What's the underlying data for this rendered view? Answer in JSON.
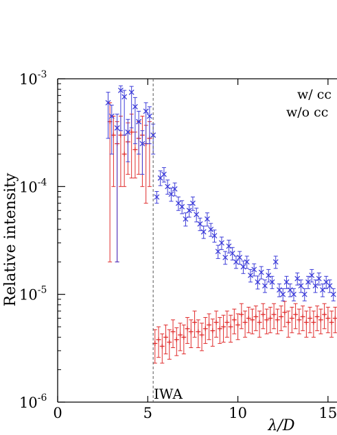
{
  "chart_data": {
    "type": "scatter",
    "xlabel": "λ/D",
    "ylabel": "Relative intensity",
    "xlim": [
      0,
      15.5
    ],
    "ylim": [
      1e-06,
      0.001
    ],
    "y_scale": "log",
    "x_ticks": [
      {
        "value": 0,
        "label": "0"
      },
      {
        "value": 5,
        "label": "5"
      },
      {
        "value": 10,
        "label": "10"
      },
      {
        "value": 15,
        "label": "15"
      }
    ],
    "y_ticks": [
      {
        "value": 1e-06,
        "base": "10",
        "exp": "-6"
      },
      {
        "value": 1e-05,
        "base": "10",
        "exp": "-5"
      },
      {
        "value": 0.0001,
        "base": "10",
        "exp": "-4"
      },
      {
        "value": 0.001,
        "base": "10",
        "exp": "-3"
      }
    ],
    "legend": {
      "position": "top-right",
      "entries": [
        "w/ cc",
        "w/o cc"
      ]
    },
    "annotations": [
      {
        "text": "IWA",
        "x": 5.3
      }
    ],
    "colors": {
      "series_blue": "#3a3ad8",
      "series_red": "#e02a2a",
      "axis": "#000000"
    },
    "series": [
      {
        "marker": "x",
        "color": "#3a3ad8",
        "x": [
          2.8,
          3.0,
          3.3,
          3.5,
          3.7,
          3.9,
          4.1,
          4.3,
          4.5,
          4.7,
          4.9,
          5.1,
          5.3,
          5.5,
          5.7,
          5.9,
          6.1,
          6.3,
          6.5,
          6.7,
          6.9,
          7.1,
          7.3,
          7.5,
          7.7,
          7.9,
          8.1,
          8.3,
          8.5,
          8.7,
          8.9,
          9.1,
          9.3,
          9.5,
          9.7,
          9.9,
          10.1,
          10.3,
          10.5,
          10.7,
          10.9,
          11.1,
          11.3,
          11.5,
          11.7,
          11.9,
          12.1,
          12.3,
          12.5,
          12.7,
          12.9,
          13.1,
          13.3,
          13.5,
          13.7,
          13.9,
          14.1,
          14.3,
          14.5,
          14.7,
          14.9,
          15.1,
          15.3
        ],
        "y": [
          0.0006,
          0.00045,
          0.00035,
          0.00078,
          0.00068,
          0.00032,
          0.00075,
          0.00055,
          0.0004,
          0.00025,
          0.0005,
          0.00045,
          0.0003,
          8e-05,
          0.00012,
          0.00013,
          0.0001,
          8.5e-05,
          9.5e-05,
          7e-05,
          6.5e-05,
          5e-05,
          6e-05,
          7e-05,
          5.5e-05,
          4.5e-05,
          3.8e-05,
          5e-05,
          4e-05,
          3.5e-05,
          2.5e-05,
          3e-05,
          2.2e-05,
          2.8e-05,
          2.4e-05,
          2e-05,
          2.2e-05,
          1.8e-05,
          2e-05,
          1.5e-05,
          1.7e-05,
          1.3e-05,
          1.6e-05,
          1.2e-05,
          1.5e-05,
          1.3e-05,
          2e-05,
          1.1e-05,
          1e-05,
          1.3e-05,
          1.1e-05,
          1e-05,
          1.4e-05,
          1.2e-05,
          1e-05,
          1.3e-05,
          1.5e-05,
          1.2e-05,
          1.4e-05,
          1.1e-05,
          1.3e-05,
          1.2e-05,
          1e-05
        ],
        "err_lo": [
          0.00032,
          0.00025,
          0.00033,
          0.00045,
          0.00038,
          0.00015,
          0.0004,
          0.0003,
          0.0002,
          0.00012,
          0.00025,
          0.0002,
          0.0001,
          1e-05,
          1.8e-05,
          2e-05,
          1.5e-05,
          1.2e-05,
          1.3e-05,
          1e-05,
          9e-06,
          7e-06,
          8e-06,
          1e-05,
          8e-06,
          6e-06,
          5e-06,
          7e-06,
          5.5e-06,
          4.5e-06,
          3.5e-06,
          4e-06,
          3e-06,
          3.8e-06,
          3.2e-06,
          2.6e-06,
          3e-06,
          2.4e-06,
          2.6e-06,
          2e-06,
          2.2e-06,
          1.8e-06,
          2.1e-06,
          1.6e-06,
          2e-06,
          1.7e-06,
          2.6e-06,
          1.5e-06,
          1.3e-06,
          1.7e-06,
          1.5e-06,
          1.3e-06,
          1.8e-06,
          1.6e-06,
          1.3e-06,
          1.7e-06,
          2e-06,
          1.6e-06,
          1.8e-06,
          1.5e-06,
          1.7e-06,
          1.6e-06,
          1.3e-06
        ],
        "err_hi": [
          0.00015,
          0.00012,
          0.00012,
          8e-05,
          0.0001,
          0.0001,
          0.0001,
          0.00012,
          0.0001,
          8e-05,
          0.0001,
          0.0001,
          8e-05,
          1e-05,
          2e-05,
          2e-05,
          1.5e-05,
          1.2e-05,
          1.3e-05,
          1e-05,
          9e-06,
          7e-06,
          8e-06,
          1e-05,
          8e-06,
          6e-06,
          5e-06,
          7e-06,
          5.5e-06,
          4.5e-06,
          3.5e-06,
          4e-06,
          3e-06,
          3.8e-06,
          3.2e-06,
          2.6e-06,
          3e-06,
          2.4e-06,
          2.6e-06,
          2e-06,
          2.2e-06,
          1.8e-06,
          2.1e-06,
          1.6e-06,
          2e-06,
          1.7e-06,
          2.6e-06,
          1.5e-06,
          1.3e-06,
          1.7e-06,
          1.5e-06,
          1.3e-06,
          1.8e-06,
          1.6e-06,
          1.3e-06,
          1.7e-06,
          2e-06,
          1.6e-06,
          1.8e-06,
          1.5e-06,
          1.7e-06,
          1.6e-06,
          1.3e-06
        ]
      },
      {
        "marker": "+",
        "color": "#e02a2a",
        "x": [
          2.9,
          3.1,
          3.3,
          3.5,
          3.7,
          3.9,
          4.1,
          4.3,
          4.5,
          4.7,
          4.9,
          5.1,
          5.4,
          5.6,
          5.8,
          6.0,
          6.2,
          6.4,
          6.6,
          6.8,
          7.0,
          7.2,
          7.4,
          7.6,
          7.8,
          8.0,
          8.2,
          8.4,
          8.6,
          8.8,
          9.0,
          9.2,
          9.4,
          9.6,
          9.8,
          10.0,
          10.2,
          10.4,
          10.6,
          10.8,
          11.0,
          11.2,
          11.4,
          11.6,
          11.8,
          12.0,
          12.2,
          12.4,
          12.6,
          12.8,
          13.0,
          13.2,
          13.4,
          13.6,
          13.8,
          14.0,
          14.2,
          14.4,
          14.6,
          14.8,
          15.0,
          15.2,
          15.4
        ],
        "y": [
          0.0004,
          0.0003,
          0.00025,
          0.0003,
          0.0002,
          0.00026,
          0.00032,
          0.00022,
          0.00028,
          0.0003,
          0.00025,
          0.00028,
          3.5e-06,
          3.8e-06,
          3.3e-06,
          4e-06,
          3.6e-06,
          4.5e-06,
          3.8e-06,
          4.2e-06,
          4e-06,
          4.8e-06,
          4.5e-06,
          5.5e-06,
          4.5e-06,
          4.2e-06,
          4.8e-06,
          5.2e-06,
          4.6e-06,
          5.5e-06,
          4.8e-06,
          5e-06,
          5.5e-06,
          5e-06,
          5.8e-06,
          5.2e-06,
          6.5e-06,
          5.5e-06,
          6e-06,
          5.8e-06,
          6.2e-06,
          5.5e-06,
          6.5e-06,
          5.8e-06,
          6e-06,
          6.5e-06,
          5.8e-06,
          6.2e-06,
          6.8e-06,
          5.5e-06,
          6e-06,
          6.5e-06,
          5.8e-06,
          6.2e-06,
          5.5e-06,
          6e-06,
          5.5e-06,
          6.2e-06,
          5.8e-06,
          6.5e-06,
          6e-06,
          5.5e-06,
          6e-06
        ],
        "err_lo": [
          0.00038,
          0.0002,
          0.00023,
          0.0002,
          0.0001,
          0.00013,
          0.0002,
          0.0001,
          0.00015,
          0.0002,
          0.00018,
          0.00018,
          1.2e-06,
          1.2e-06,
          1e-06,
          1.2e-06,
          1.1e-06,
          1.3e-06,
          1.1e-06,
          1.2e-06,
          1.2e-06,
          1.3e-06,
          1.3e-06,
          1.5e-06,
          1.3e-06,
          1.2e-06,
          1.3e-06,
          1.4e-06,
          1.3e-06,
          1.5e-06,
          1.3e-06,
          1.4e-06,
          1.5e-06,
          1.4e-06,
          1.5e-06,
          1.4e-06,
          1.7e-06,
          1.5e-06,
          1.6e-06,
          1.5e-06,
          1.6e-06,
          1.5e-06,
          1.7e-06,
          1.5e-06,
          1.6e-06,
          1.7e-06,
          1.5e-06,
          1.6e-06,
          1.8e-06,
          1.5e-06,
          1.6e-06,
          1.7e-06,
          1.5e-06,
          1.6e-06,
          1.5e-06,
          1.6e-06,
          1.5e-06,
          1.6e-06,
          1.5e-06,
          1.7e-06,
          1.6e-06,
          1.5e-06,
          1.6e-06
        ],
        "err_hi": [
          0.0002,
          0.00015,
          0.00015,
          0.00015,
          0.0001,
          0.00013,
          0.00015,
          0.0001,
          0.00012,
          0.00015,
          0.00012,
          0.00012,
          1.2e-06,
          1.2e-06,
          1e-06,
          1.2e-06,
          1.1e-06,
          1.3e-06,
          1.1e-06,
          1.2e-06,
          1.2e-06,
          1.3e-06,
          1.3e-06,
          1.5e-06,
          1.3e-06,
          1.2e-06,
          1.3e-06,
          1.4e-06,
          1.3e-06,
          1.5e-06,
          1.3e-06,
          1.4e-06,
          1.5e-06,
          1.4e-06,
          1.5e-06,
          1.4e-06,
          1.7e-06,
          1.5e-06,
          1.6e-06,
          1.5e-06,
          1.6e-06,
          1.5e-06,
          1.7e-06,
          1.5e-06,
          1.6e-06,
          1.7e-06,
          1.5e-06,
          1.6e-06,
          1.8e-06,
          1.5e-06,
          1.6e-06,
          1.7e-06,
          1.5e-06,
          1.6e-06,
          1.5e-06,
          1.6e-06,
          1.5e-06,
          1.6e-06,
          1.5e-06,
          1.7e-06,
          1.6e-06,
          1.5e-06,
          1.6e-06
        ]
      }
    ]
  }
}
